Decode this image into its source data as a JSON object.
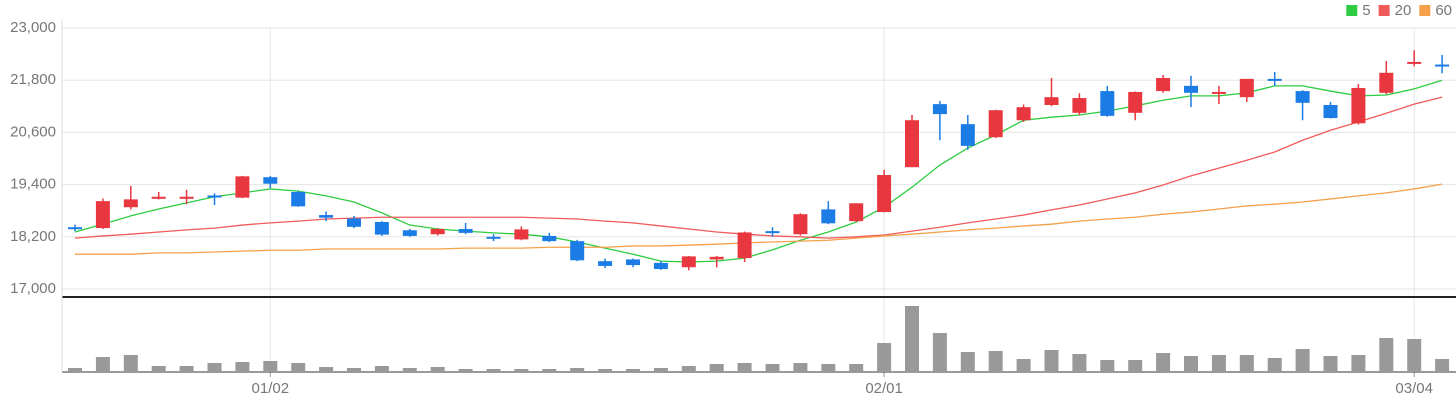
{
  "chart_data": {
    "type": "candlestick",
    "categories": [
      null,
      null,
      null,
      null,
      null,
      null,
      null,
      "01/02",
      null,
      null,
      null,
      null,
      null,
      null,
      null,
      null,
      null,
      null,
      null,
      null,
      null,
      null,
      null,
      null,
      null,
      null,
      null,
      null,
      null,
      "02/01",
      null,
      null,
      null,
      null,
      null,
      null,
      null,
      null,
      null,
      null,
      null,
      null,
      null,
      null,
      null,
      null,
      null,
      null,
      "03/04",
      null
    ],
    "open": [
      18420,
      18400,
      18880,
      19100,
      19100,
      19150,
      19100,
      19570,
      19230,
      18700,
      18620,
      18540,
      18350,
      18260,
      18380,
      18200,
      18140,
      18220,
      18100,
      17640,
      17680,
      17600,
      17500,
      17680,
      17710,
      18330,
      18260,
      18830,
      18560,
      18770,
      19800,
      21250,
      20790,
      20490,
      20880,
      21230,
      21050,
      21550,
      21050,
      21550,
      21670,
      21510,
      21410,
      21830,
      21550,
      21230,
      20810,
      21510,
      22190,
      22160
    ],
    "high": [
      18480,
      19080,
      19370,
      19230,
      19280,
      19200,
      19600,
      19600,
      19250,
      18780,
      18680,
      18560,
      18380,
      18400,
      18520,
      18260,
      18440,
      18290,
      18130,
      17700,
      17700,
      17640,
      17760,
      17760,
      18320,
      18420,
      18740,
      19020,
      18970,
      19740,
      21000,
      21320,
      21000,
      21120,
      21240,
      21850,
      21500,
      21670,
      21540,
      21920,
      21900,
      21670,
      21830,
      21990,
      21570,
      21300,
      21710,
      22240,
      22490,
      22380
    ],
    "low": [
      18330,
      18380,
      18830,
      19060,
      18950,
      18930,
      19090,
      19320,
      18890,
      18560,
      18400,
      18220,
      18200,
      18230,
      18260,
      18100,
      18120,
      18080,
      17640,
      17480,
      17500,
      17440,
      17430,
      17500,
      17620,
      18200,
      18230,
      18490,
      18540,
      18760,
      19800,
      20420,
      20200,
      20470,
      20840,
      21200,
      21000,
      20960,
      20880,
      21510,
      21180,
      21250,
      21300,
      21670,
      20880,
      20920,
      20780,
      21480,
      22120,
      21960
    ],
    "close": [
      18400,
      19020,
      19060,
      19120,
      19120,
      19120,
      19590,
      19420,
      18900,
      18640,
      18430,
      18250,
      18220,
      18380,
      18290,
      18170,
      18370,
      18100,
      17660,
      17530,
      17550,
      17460,
      17750,
      17740,
      18300,
      18300,
      18720,
      18510,
      18970,
      19620,
      20880,
      21020,
      20290,
      21110,
      21180,
      21410,
      21390,
      20980,
      21530,
      21850,
      21510,
      21530,
      21830,
      21800,
      21280,
      20930,
      21620,
      21970,
      22220,
      22120
    ],
    "up_color": "#e8373f",
    "down_color": "#1c7ce6",
    "series": [
      {
        "name": "5",
        "color": "#2ecc40",
        "values": [
          18310,
          18490,
          18680,
          18840,
          18980,
          19120,
          19210,
          19300,
          19250,
          19140,
          19000,
          18750,
          18470,
          18380,
          18330,
          18290,
          18260,
          18200,
          18080,
          17940,
          17800,
          17640,
          17620,
          17640,
          17710,
          17900,
          18120,
          18310,
          18540,
          18880,
          19340,
          19850,
          20240,
          20540,
          20880,
          20950,
          21000,
          21090,
          21210,
          21340,
          21440,
          21440,
          21510,
          21670,
          21670,
          21550,
          21440,
          21460,
          21600,
          21800
        ]
      },
      {
        "name": "20",
        "color": "#f05a5a",
        "values": [
          18170,
          18220,
          18260,
          18310,
          18360,
          18400,
          18470,
          18520,
          18560,
          18610,
          18630,
          18650,
          18650,
          18650,
          18650,
          18650,
          18650,
          18630,
          18610,
          18560,
          18520,
          18450,
          18380,
          18310,
          18260,
          18220,
          18200,
          18170,
          18200,
          18240,
          18330,
          18420,
          18520,
          18610,
          18700,
          18820,
          18930,
          19070,
          19210,
          19390,
          19600,
          19780,
          19960,
          20150,
          20420,
          20650,
          20840,
          21040,
          21250,
          21410
        ]
      },
      {
        "name": "60",
        "color": "#f5a04a",
        "values": [
          17800,
          17800,
          17800,
          17830,
          17830,
          17850,
          17870,
          17890,
          17890,
          17920,
          17920,
          17920,
          17920,
          17920,
          17940,
          17940,
          17940,
          17960,
          17960,
          17960,
          17990,
          17990,
          18010,
          18030,
          18060,
          18080,
          18100,
          18120,
          18170,
          18220,
          18260,
          18310,
          18360,
          18400,
          18450,
          18490,
          18560,
          18610,
          18650,
          18720,
          18770,
          18840,
          18910,
          18950,
          19000,
          19070,
          19140,
          19210,
          19300,
          19410
        ]
      }
    ],
    "volume": {
      "color": "#999999",
      "ylim": [
        0,
        75
      ],
      "values": [
        4,
        15,
        17,
        6,
        6,
        9,
        10,
        11,
        9,
        5,
        4,
        6,
        4,
        5,
        3,
        3,
        3,
        3,
        4,
        3,
        3,
        4,
        6,
        8,
        9,
        8,
        9,
        8,
        8,
        29,
        66,
        39,
        20,
        21,
        13,
        22,
        18,
        12,
        12,
        19,
        16,
        17,
        17,
        14,
        23,
        16,
        17,
        34,
        33,
        13
      ]
    },
    "ylim": [
      17000,
      23000
    ],
    "yticks": [
      {
        "value": 17000,
        "label": "17,000"
      },
      {
        "value": 18200,
        "label": "18,200"
      },
      {
        "value": 19400,
        "label": "19,400"
      },
      {
        "value": 20600,
        "label": "20,600"
      },
      {
        "value": 21800,
        "label": "21,800"
      },
      {
        "value": 23000,
        "label": "23,000"
      }
    ],
    "grid": true
  }
}
